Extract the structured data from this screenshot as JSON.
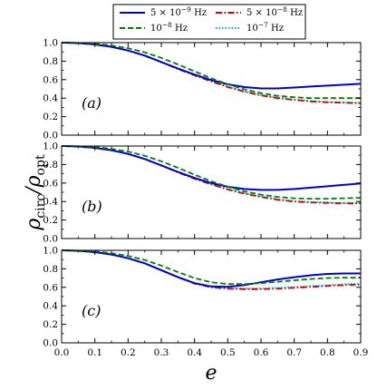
{
  "chart_data": {
    "type": "line",
    "xlabel": "e",
    "ylabel_main": "ρ",
    "ylabel_sub1": "circ",
    "ylabel_mid": "/ρ",
    "ylabel_sub2": "opt",
    "xlim": [
      0.0,
      0.9
    ],
    "ylim": [
      0.0,
      1.0
    ],
    "x_ticks": [
      "0.0",
      "0.1",
      "0.2",
      "0.3",
      "0.4",
      "0.5",
      "0.6",
      "0.7",
      "0.8",
      "0.9"
    ],
    "y_ticks": [
      "0.0",
      "0.2",
      "0.4",
      "0.6",
      "0.8",
      "1.0"
    ],
    "grid": false,
    "legend_position": "top",
    "legend": [
      {
        "base": "5 × 10",
        "exp": "−9",
        "unit": " Hz",
        "color": "#0000cc",
        "dash": "solid"
      },
      {
        "base": "5 × 10",
        "exp": "−8",
        "unit": " Hz",
        "color": "#cc0000",
        "dash": "dashdot"
      },
      {
        "base": "10",
        "exp": "−8",
        "unit": " Hz",
        "color": "#008000",
        "dash": "dashed"
      },
      {
        "base": "10",
        "exp": "−7",
        "unit": " Hz",
        "color": "#00bcd4",
        "dash": "dotted"
      }
    ],
    "x": [
      0.0,
      0.05,
      0.1,
      0.15,
      0.2,
      0.25,
      0.3,
      0.35,
      0.4,
      0.45,
      0.5,
      0.55,
      0.6,
      0.65,
      0.7,
      0.75,
      0.8,
      0.85,
      0.9
    ],
    "panels": [
      {
        "label": "(a)",
        "series": [
          {
            "key": "5e-9",
            "values": [
              1.0,
              0.995,
              0.98,
              0.955,
              0.915,
              0.86,
              0.79,
              0.72,
              0.655,
              0.595,
              0.55,
              0.52,
              0.505,
              0.505,
              0.515,
              0.525,
              0.535,
              0.545,
              0.555
            ]
          },
          {
            "key": "1e-8",
            "values": [
              1.0,
              0.997,
              0.99,
              0.97,
              0.94,
              0.895,
              0.835,
              0.765,
              0.69,
              0.615,
              0.55,
              0.495,
              0.455,
              0.425,
              0.41,
              0.4,
              0.4,
              0.4,
              0.4
            ]
          },
          {
            "key": "5e-8",
            "values": [
              1.0,
              0.995,
              0.98,
              0.955,
              0.915,
              0.86,
              0.79,
              0.715,
              0.645,
              0.58,
              0.52,
              0.47,
              0.43,
              0.4,
              0.38,
              0.365,
              0.355,
              0.35,
              0.345
            ]
          },
          {
            "key": "1e-7",
            "values": [
              1.0,
              0.995,
              0.98,
              0.955,
              0.915,
              0.86,
              0.792,
              0.72,
              0.65,
              0.585,
              0.525,
              0.475,
              0.435,
              0.405,
              0.385,
              0.37,
              0.36,
              0.355,
              0.35
            ]
          }
        ]
      },
      {
        "label": "(b)",
        "series": [
          {
            "key": "5e-9",
            "values": [
              1.0,
              0.995,
              0.98,
              0.955,
              0.915,
              0.86,
              0.79,
              0.72,
              0.655,
              0.6,
              0.56,
              0.535,
              0.525,
              0.525,
              0.535,
              0.55,
              0.565,
              0.58,
              0.595
            ]
          },
          {
            "key": "1e-8",
            "values": [
              1.0,
              0.997,
              0.99,
              0.97,
              0.94,
              0.895,
              0.835,
              0.765,
              0.69,
              0.62,
              0.56,
              0.51,
              0.475,
              0.45,
              0.435,
              0.43,
              0.43,
              0.435,
              0.44
            ]
          },
          {
            "key": "5e-8",
            "values": [
              1.0,
              0.995,
              0.98,
              0.955,
              0.915,
              0.86,
              0.79,
              0.715,
              0.645,
              0.585,
              0.53,
              0.485,
              0.45,
              0.42,
              0.4,
              0.39,
              0.385,
              0.38,
              0.38
            ]
          },
          {
            "key": "1e-7",
            "values": [
              1.0,
              0.995,
              0.98,
              0.955,
              0.915,
              0.86,
              0.792,
              0.72,
              0.65,
              0.59,
              0.535,
              0.49,
              0.455,
              0.425,
              0.405,
              0.395,
              0.39,
              0.385,
              0.385
            ]
          }
        ]
      },
      {
        "label": "(c)",
        "series": [
          {
            "key": "5e-9",
            "values": [
              1.0,
              0.995,
              0.98,
              0.955,
              0.915,
              0.86,
              0.785,
              0.71,
              0.645,
              0.61,
              0.605,
              0.625,
              0.655,
              0.685,
              0.71,
              0.73,
              0.745,
              0.75,
              0.75
            ]
          },
          {
            "key": "1e-8",
            "values": [
              1.0,
              0.997,
              0.99,
              0.97,
              0.94,
              0.895,
              0.835,
              0.765,
              0.7,
              0.655,
              0.635,
              0.635,
              0.645,
              0.66,
              0.675,
              0.69,
              0.7,
              0.705,
              0.705
            ]
          },
          {
            "key": "5e-8",
            "values": [
              1.0,
              0.995,
              0.98,
              0.955,
              0.915,
              0.86,
              0.785,
              0.71,
              0.64,
              0.6,
              0.585,
              0.58,
              0.58,
              0.585,
              0.595,
              0.605,
              0.615,
              0.625,
              0.63
            ]
          },
          {
            "key": "1e-7",
            "values": [
              1.0,
              0.995,
              0.98,
              0.955,
              0.915,
              0.86,
              0.787,
              0.712,
              0.642,
              0.603,
              0.59,
              0.588,
              0.59,
              0.595,
              0.605,
              0.615,
              0.625,
              0.635,
              0.64
            ]
          }
        ]
      }
    ]
  }
}
